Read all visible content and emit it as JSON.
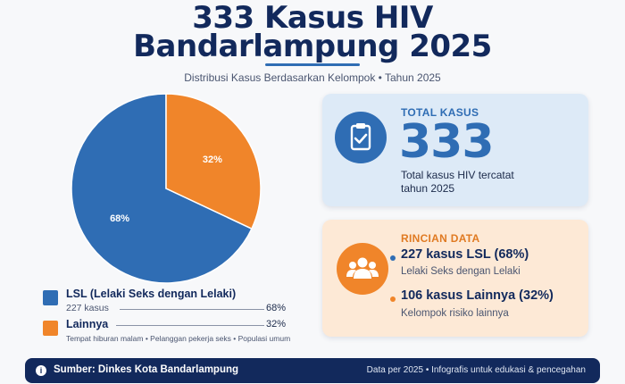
{
  "header": {
    "title_line1": "333 Kasus HIV",
    "title_line2": "Bandarlampung 2025",
    "subtitle": "Distribusi Kasus Berdasarkan Kelompok • Tahun 2025"
  },
  "chart_data": {
    "type": "pie",
    "categories": [
      "LSL (Lelaki Seks dengan Lelaki)",
      "Lainnya"
    ],
    "values": [
      68,
      32
    ],
    "counts": [
      227,
      106
    ],
    "data_labels": [
      "68%",
      "32%"
    ],
    "colors": [
      "#2f6db4",
      "#f0852a"
    ],
    "title": ""
  },
  "legend": {
    "items": [
      {
        "name": "LSL (Lelaki Seks dengan Lelaki)",
        "sub": "227 kasus",
        "pct": "68%",
        "color": "#2f6db4"
      },
      {
        "name": "Lainnya",
        "pct": "32%",
        "color": "#f0852a"
      }
    ],
    "note": "Tempat hiburan malam • Pelanggan pekerja seks • Populasi umum"
  },
  "total_card": {
    "label": "TOTAL KASUS",
    "value": "333",
    "desc_line1": "Total kasus HIV tercatat",
    "desc_line2": "tahun 2025",
    "icon": "clipboard-check-icon"
  },
  "detail_card": {
    "label": "RINCIAN DATA",
    "icon": "people-group-icon",
    "items": [
      {
        "title": "227 kasus LSL (68%)",
        "sub": "Lelaki Seks dengan Lelaki"
      },
      {
        "title": "106 kasus Lainnya (32%)",
        "sub": "Kelompok risiko lainnya"
      }
    ]
  },
  "footer": {
    "source": "Sumber: Dinkes Kota Bandarlampung",
    "note": "Data per 2025 • Infografis untuk edukasi & pencegahan"
  },
  "colors": {
    "navy": "#12295c",
    "blue": "#2f6db4",
    "orange": "#f0852a"
  }
}
